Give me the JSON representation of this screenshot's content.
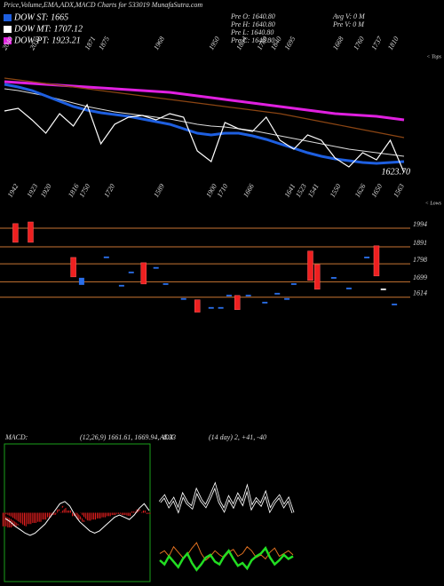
{
  "header": {
    "title": "Price,Volume,EMA,ADX,MACD Charts for 533019 MunafaSutra.com",
    "legend": [
      {
        "text": "DOW ST: 1665",
        "color": "#1e5fe0"
      },
      {
        "text": "DOW MT: 1707.12",
        "color": "#ffffff"
      },
      {
        "text": "DOW PT: 1923.21",
        "color": "#e020e0"
      }
    ],
    "info_left": [
      "Pre O: 1640.80",
      "Pre H: 1640.80",
      "Pre L: 1640.80",
      "Pre C: 1640.80"
    ],
    "info_right": [
      "Avg V: 0 M",
      "Pre V: 0 M"
    ]
  },
  "chart_data": [
    {
      "type": "line",
      "side_label": "< Tops",
      "ylim": [
        1520,
        2300
      ],
      "xlim": [
        0,
        29
      ],
      "peak_labels": [
        {
          "x": 0,
          "label": "2040"
        },
        {
          "x": 2,
          "label": "2030"
        },
        {
          "x": 6,
          "label": "1871"
        },
        {
          "x": 7,
          "label": "1875"
        },
        {
          "x": 11,
          "label": "1968"
        },
        {
          "x": 15,
          "label": "1950"
        },
        {
          "x": 17,
          "label": "1884"
        },
        {
          "x": 18.5,
          "label": "1780"
        },
        {
          "x": 19.5,
          "label": "1840"
        },
        {
          "x": 20.5,
          "label": "1695"
        },
        {
          "x": 24,
          "label": "1668"
        },
        {
          "x": 25.5,
          "label": "1760"
        },
        {
          "x": 26.8,
          "label": "1737"
        },
        {
          "x": 28,
          "label": "1810"
        }
      ],
      "annotations": [
        {
          "value": 1623.7,
          "label": "1623.70"
        }
      ],
      "series": [
        {
          "name": "PT",
          "color": "#e020e0",
          "width": 3,
          "values": [
            2135,
            2130,
            2125,
            2120,
            2115,
            2110,
            2105,
            2100,
            2095,
            2090,
            2085,
            2080,
            2075,
            2065,
            2055,
            2045,
            2035,
            2025,
            2015,
            2005,
            1995,
            1985,
            1975,
            1965,
            1955,
            1950,
            1945,
            1940,
            1930,
            1920
          ]
        },
        {
          "name": "Long",
          "color": "#8b4513",
          "width": 1.2,
          "values": [
            2155,
            2145,
            2135,
            2125,
            2115,
            2105,
            2095,
            2085,
            2075,
            2065,
            2055,
            2045,
            2035,
            2025,
            2015,
            2005,
            1995,
            1985,
            1975,
            1965,
            1955,
            1940,
            1925,
            1910,
            1895,
            1880,
            1865,
            1850,
            1835,
            1820
          ]
        },
        {
          "name": "MT",
          "color": "#dddddd",
          "width": 1,
          "values": [
            2095,
            2085,
            2070,
            2055,
            2035,
            2015,
            1995,
            1980,
            1965,
            1955,
            1945,
            1935,
            1925,
            1910,
            1895,
            1885,
            1880,
            1870,
            1860,
            1845,
            1830,
            1815,
            1800,
            1785,
            1770,
            1755,
            1745,
            1735,
            1725,
            1715
          ]
        },
        {
          "name": "ST",
          "color": "#1e5fe0",
          "width": 3,
          "values": [
            2120,
            2105,
            2085,
            2055,
            2025,
            1995,
            1975,
            1960,
            1950,
            1940,
            1925,
            1910,
            1895,
            1870,
            1845,
            1835,
            1845,
            1845,
            1830,
            1810,
            1785,
            1760,
            1735,
            1715,
            1700,
            1690,
            1680,
            1675,
            1680,
            1685
          ]
        },
        {
          "name": "Price",
          "color": "#ffffff",
          "width": 1.2,
          "values": [
            1970,
            1985,
            1920,
            1845,
            1955,
            1885,
            2005,
            1785,
            1895,
            1935,
            1945,
            1920,
            1955,
            1935,
            1745,
            1685,
            1905,
            1870,
            1855,
            1935,
            1805,
            1755,
            1835,
            1805,
            1705,
            1655,
            1735,
            1695,
            1805,
            1623.7
          ]
        }
      ]
    },
    {
      "type": "bar",
      "side_label": "< Lows",
      "ylim": [
        1530,
        2150
      ],
      "xlim": [
        0,
        29
      ],
      "levels": [
        1994,
        1891,
        1798,
        1699,
        1614
      ],
      "level_color": "#c87533",
      "peak_labels": [
        {
          "x": 0.4,
          "label": "1942"
        },
        {
          "x": 1.8,
          "label": "1923"
        },
        {
          "x": 2.8,
          "label": "1920"
        },
        {
          "x": 4.8,
          "label": "1816"
        },
        {
          "x": 5.6,
          "label": "1750"
        },
        {
          "x": 7.4,
          "label": "1720"
        },
        {
          "x": 11,
          "label": "1589"
        },
        {
          "x": 14.8,
          "label": "1900"
        },
        {
          "x": 15.6,
          "label": "1710"
        },
        {
          "x": 17.5,
          "label": "1666"
        },
        {
          "x": 20.5,
          "label": "1641"
        },
        {
          "x": 21.3,
          "label": "1523"
        },
        {
          "x": 22.2,
          "label": "1541"
        },
        {
          "x": 23.8,
          "label": "1550"
        },
        {
          "x": 25.6,
          "label": "1626"
        },
        {
          "x": 26.8,
          "label": "1650"
        },
        {
          "x": 28.4,
          "label": "1563"
        }
      ],
      "bars": [
        {
          "x": 0.8,
          "high": 2019,
          "low": 1916,
          "color": "#ee2020"
        },
        {
          "x": 1.9,
          "high": 2028,
          "low": 1916,
          "color": "#ee2020"
        },
        {
          "x": 5,
          "high": 1833,
          "low": 1726,
          "color": "#ee2020"
        },
        {
          "x": 5.6,
          "high": 1721,
          "low": 1682,
          "color": "#2a6ee8"
        },
        {
          "x": 7.4,
          "high": 1838,
          "low": 1829,
          "color": "#2a6ee8"
        },
        {
          "x": 8.5,
          "high": 1682,
          "low": 1673,
          "color": "#2a6ee8"
        },
        {
          "x": 9.2,
          "high": 1755,
          "low": 1746,
          "color": "#2a6ee8"
        },
        {
          "x": 10.1,
          "high": 1804,
          "low": 1687,
          "color": "#ee2020"
        },
        {
          "x": 11,
          "high": 1780,
          "low": 1771,
          "color": "#2a6ee8"
        },
        {
          "x": 11.7,
          "high": 1691,
          "low": 1682,
          "color": "#2a6ee8"
        },
        {
          "x": 13,
          "high": 1609,
          "low": 1600,
          "color": "#2a6ee8"
        },
        {
          "x": 14,
          "high": 1600,
          "low": 1532,
          "color": "#ee2020"
        },
        {
          "x": 15,
          "high": 1560,
          "low": 1551,
          "color": "#2a6ee8"
        },
        {
          "x": 15.7,
          "high": 1560,
          "low": 1551,
          "color": "#2a6ee8"
        },
        {
          "x": 16.3,
          "high": 1628,
          "low": 1619,
          "color": "#2a6ee8"
        },
        {
          "x": 16.9,
          "high": 1624,
          "low": 1546,
          "color": "#ee2020"
        },
        {
          "x": 17.7,
          "high": 1628,
          "low": 1619,
          "color": "#2a6ee8"
        },
        {
          "x": 18.9,
          "high": 1589,
          "low": 1580,
          "color": "#2a6ee8"
        },
        {
          "x": 19.8,
          "high": 1638,
          "low": 1629,
          "color": "#2a6ee8"
        },
        {
          "x": 20.5,
          "high": 1609,
          "low": 1600,
          "color": "#2a6ee8"
        },
        {
          "x": 21,
          "high": 1691,
          "low": 1682,
          "color": "#2a6ee8"
        },
        {
          "x": 22.2,
          "high": 1868,
          "low": 1707,
          "color": "#ee2020"
        },
        {
          "x": 22.7,
          "high": 1794,
          "low": 1658,
          "color": "#ee2020"
        },
        {
          "x": 23.9,
          "high": 1725,
          "low": 1716,
          "color": "#2a6ee8"
        },
        {
          "x": 25,
          "high": 1667,
          "low": 1658,
          "color": "#2a6ee8"
        },
        {
          "x": 26.3,
          "high": 1837,
          "low": 1828,
          "color": "#2a6ee8"
        },
        {
          "x": 27,
          "high": 1897,
          "low": 1731,
          "color": "#ee2020"
        },
        {
          "x": 27.5,
          "high": 1662,
          "low": 1653,
          "color": "#eeeeee"
        },
        {
          "x": 28.3,
          "high": 1579,
          "low": 1570,
          "color": "#2a6ee8"
        }
      ]
    },
    {
      "type": "line",
      "title": "MACD:",
      "subtitle": "(12,26,9) 1661.61, 1669.94, -8.33",
      "ylim": [
        -60,
        60
      ],
      "xlim": [
        0,
        29
      ],
      "border": "#1aa01a",
      "histogram": {
        "color": "#ee2020",
        "values": [
          -12,
          -13,
          -12,
          -11,
          -12,
          -10,
          -9,
          -8,
          -6,
          -4,
          -2,
          3,
          6,
          2,
          -3,
          -6,
          -8,
          -7,
          -6,
          -5,
          -4,
          -3,
          -2,
          -1,
          -2,
          -3,
          1,
          3,
          2,
          -1
        ]
      },
      "series": [
        {
          "name": "Signal",
          "color": "#000000",
          "width": 2.5,
          "values": [
            -2,
            -4,
            -7,
            -10,
            -13,
            -16,
            -17,
            -16,
            -13,
            -9,
            -4,
            1,
            5,
            7,
            4,
            -1,
            -6,
            -10,
            -14,
            -15,
            -14,
            -11,
            -7,
            -4,
            -3,
            -4,
            -3,
            0,
            4,
            4
          ]
        },
        {
          "name": "MACD",
          "color": "#ffffff",
          "width": 1,
          "values": [
            -5,
            -8,
            -12,
            -15,
            -18,
            -20,
            -18,
            -14,
            -10,
            -4,
            2,
            8,
            10,
            6,
            -2,
            -8,
            -12,
            -16,
            -18,
            -16,
            -12,
            -8,
            -4,
            -2,
            -4,
            -6,
            -2,
            4,
            8,
            2
          ]
        }
      ]
    },
    {
      "type": "line",
      "title": "ADX",
      "subtitle": "(14 day) 2, +41, -40",
      "ylim": [
        0,
        100
      ],
      "xlim": [
        0,
        29
      ],
      "series": [
        {
          "name": "ADX",
          "color": "#ffffff",
          "width": 1,
          "double": true,
          "values": [
            58,
            62,
            55,
            60,
            52,
            63,
            57,
            54,
            66,
            59,
            55,
            62,
            70,
            58,
            52,
            61,
            55,
            63,
            57,
            68,
            54,
            60,
            56,
            64,
            52,
            58,
            62,
            55,
            60,
            50
          ]
        },
        {
          "name": "+DI",
          "color": "#e07020",
          "width": 1,
          "values": [
            20,
            22,
            18,
            25,
            21,
            17,
            19,
            24,
            28,
            20,
            15,
            18,
            22,
            19,
            17,
            21,
            23,
            18,
            20,
            25,
            22,
            17,
            19,
            16,
            21,
            24,
            18,
            20,
            22,
            19
          ]
        },
        {
          "name": "-DI",
          "color": "#22dd22",
          "width": 2.5,
          "values": [
            15,
            12,
            18,
            14,
            10,
            16,
            20,
            13,
            8,
            12,
            17,
            19,
            14,
            12,
            18,
            22,
            16,
            11,
            13,
            9,
            15,
            18,
            20,
            24,
            17,
            12,
            15,
            19,
            16,
            18
          ]
        }
      ]
    }
  ]
}
